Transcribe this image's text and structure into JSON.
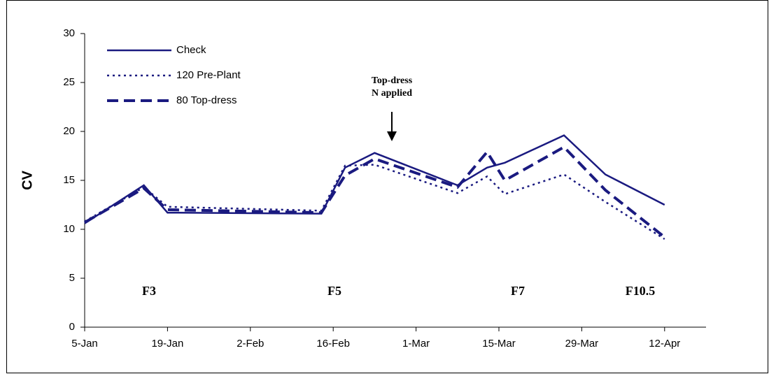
{
  "chart_data": {
    "type": "line",
    "y_label": "CV",
    "x": [
      0,
      10,
      14,
      40,
      44,
      49,
      63,
      68,
      71,
      81,
      88,
      98
    ],
    "series": [
      {
        "name": "Check",
        "color": "#1a1a80",
        "style": "solid",
        "values": [
          10.6,
          14.5,
          11.7,
          11.6,
          16.3,
          17.8,
          14.5,
          16.3,
          16.8,
          19.6,
          15.6,
          12.5
        ]
      },
      {
        "name": "120 Pre-Plant",
        "color": "#1a1a80",
        "style": "dotted",
        "values": [
          10.8,
          14.3,
          12.3,
          11.9,
          16.5,
          16.6,
          13.7,
          15.4,
          13.6,
          15.6,
          12.8,
          9.0
        ]
      },
      {
        "name": "80 Top-dress",
        "color": "#1a1a80",
        "style": "dashed",
        "values": [
          10.7,
          14.2,
          12.0,
          11.7,
          15.5,
          17.2,
          14.3,
          17.9,
          15.0,
          18.4,
          14.0,
          9.2
        ]
      }
    ],
    "xlim": [
      0,
      105
    ],
    "xticks": [
      {
        "value": 0,
        "label": "5-Jan"
      },
      {
        "value": 14,
        "label": "19-Jan"
      },
      {
        "value": 28,
        "label": "2-Feb"
      },
      {
        "value": 42,
        "label": "16-Feb"
      },
      {
        "value": 56,
        "label": "1-Mar"
      },
      {
        "value": 70,
        "label": "15-Mar"
      },
      {
        "value": 84,
        "label": "29-Mar"
      },
      {
        "value": 98,
        "label": "12-Apr"
      }
    ],
    "ylim": [
      0,
      30
    ],
    "yticks": [
      0,
      5,
      10,
      15,
      20,
      25,
      30
    ],
    "legend": "top-left",
    "annotations": [
      "F3",
      "F5",
      "F7",
      "F10.5"
    ],
    "arrow_note": [
      "Top-dress",
      "N applied"
    ]
  }
}
